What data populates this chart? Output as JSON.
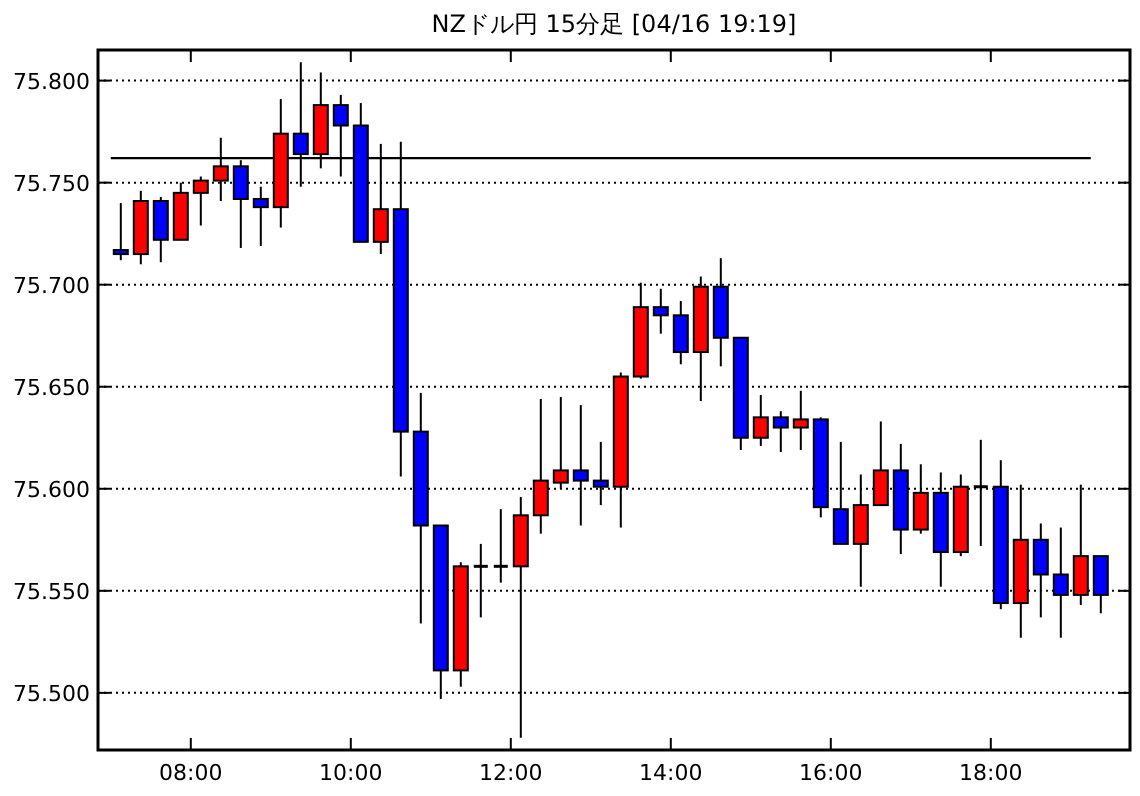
{
  "chart_data": {
    "type": "candlestick",
    "title": "NZドル円 15分足 [04/16 19:19]",
    "x": [
      7.125,
      7.375,
      7.625,
      7.875,
      8.125,
      8.375,
      8.625,
      8.875,
      9.125,
      9.375,
      9.625,
      9.875,
      10.125,
      10.375,
      10.625,
      10.875,
      11.125,
      11.375,
      11.625,
      11.875,
      12.125,
      12.375,
      12.625,
      12.875,
      13.125,
      13.375,
      13.625,
      13.875,
      14.125,
      14.375,
      14.625,
      14.875,
      15.125,
      15.375,
      15.625,
      15.875,
      16.125,
      16.375,
      16.625,
      16.875,
      17.125,
      17.375,
      17.625,
      17.875,
      18.125,
      18.375,
      18.625,
      18.875,
      19.125,
      19.375
    ],
    "ohlc": [
      [
        75.717,
        75.74,
        75.712,
        75.715
      ],
      [
        75.715,
        75.746,
        75.71,
        75.741
      ],
      [
        75.741,
        75.743,
        75.711,
        75.722
      ],
      [
        75.722,
        75.75,
        75.722,
        75.745
      ],
      [
        75.745,
        75.753,
        75.729,
        75.751
      ],
      [
        75.751,
        75.772,
        75.741,
        75.758
      ],
      [
        75.758,
        75.761,
        75.718,
        75.742
      ],
      [
        75.742,
        75.748,
        75.719,
        75.738
      ],
      [
        75.738,
        75.791,
        75.728,
        75.774
      ],
      [
        75.774,
        75.809,
        75.748,
        75.764
      ],
      [
        75.764,
        75.804,
        75.757,
        75.788
      ],
      [
        75.788,
        75.793,
        75.753,
        75.778
      ],
      [
        75.778,
        75.789,
        75.721,
        75.721
      ],
      [
        75.721,
        75.769,
        75.715,
        75.737
      ],
      [
        75.737,
        75.77,
        75.606,
        75.628
      ],
      [
        75.628,
        75.647,
        75.534,
        75.582
      ],
      [
        75.582,
        75.582,
        75.497,
        75.511
      ],
      [
        75.511,
        75.564,
        75.503,
        75.562
      ],
      [
        75.562,
        75.573,
        75.537,
        75.562
      ],
      [
        75.562,
        75.59,
        75.554,
        75.562
      ],
      [
        75.562,
        75.596,
        75.478,
        75.587
      ],
      [
        75.587,
        75.644,
        75.578,
        75.604
      ],
      [
        75.603,
        75.645,
        75.6,
        75.609
      ],
      [
        75.609,
        75.641,
        75.582,
        75.604
      ],
      [
        75.604,
        75.623,
        75.592,
        75.601
      ],
      [
        75.601,
        75.657,
        75.581,
        75.655
      ],
      [
        75.655,
        75.701,
        75.654,
        75.689
      ],
      [
        75.689,
        75.698,
        75.676,
        75.685
      ],
      [
        75.685,
        75.692,
        75.661,
        75.667
      ],
      [
        75.667,
        75.704,
        75.643,
        75.699
      ],
      [
        75.699,
        75.713,
        75.66,
        75.674
      ],
      [
        75.674,
        75.674,
        75.619,
        75.625
      ],
      [
        75.625,
        75.646,
        75.621,
        75.635
      ],
      [
        75.635,
        75.638,
        75.618,
        75.63
      ],
      [
        75.63,
        75.648,
        75.619,
        75.634
      ],
      [
        75.634,
        75.635,
        75.586,
        75.591
      ],
      [
        75.59,
        75.623,
        75.573,
        75.573
      ],
      [
        75.573,
        75.607,
        75.552,
        75.592
      ],
      [
        75.592,
        75.633,
        75.592,
        75.609
      ],
      [
        75.609,
        75.622,
        75.568,
        75.58
      ],
      [
        75.58,
        75.612,
        75.578,
        75.598
      ],
      [
        75.598,
        75.608,
        75.552,
        75.569
      ],
      [
        75.569,
        75.607,
        75.567,
        75.601
      ],
      [
        75.601,
        75.624,
        75.572,
        75.601
      ],
      [
        75.601,
        75.614,
        75.541,
        75.544
      ],
      [
        75.544,
        75.602,
        75.527,
        75.575
      ],
      [
        75.575,
        75.583,
        75.537,
        75.558
      ],
      [
        75.558,
        75.581,
        75.527,
        75.548
      ],
      [
        75.548,
        75.602,
        75.543,
        75.567
      ],
      [
        75.567,
        75.567,
        75.539,
        75.548
      ]
    ],
    "colors": [
      "#0000ff",
      "#ff0000",
      "#0000ff",
      "#ff0000",
      "#ff0000",
      "#ff0000",
      "#0000ff",
      "#0000ff",
      "#ff0000",
      "#0000ff",
      "#ff0000",
      "#0000ff",
      "#0000ff",
      "#ff0000",
      "#0000ff",
      "#0000ff",
      "#0000ff",
      "#ff0000",
      "#000000",
      "#000000",
      "#ff0000",
      "#ff0000",
      "#ff0000",
      "#0000ff",
      "#0000ff",
      "#ff0000",
      "#ff0000",
      "#0000ff",
      "#0000ff",
      "#ff0000",
      "#0000ff",
      "#0000ff",
      "#ff0000",
      "#0000ff",
      "#ff0000",
      "#0000ff",
      "#0000ff",
      "#ff0000",
      "#ff0000",
      "#0000ff",
      "#ff0000",
      "#0000ff",
      "#ff0000",
      "#000000",
      "#0000ff",
      "#ff0000",
      "#0000ff",
      "#0000ff",
      "#ff0000",
      "#0000ff"
    ],
    "xlim": [
      6.84,
      19.74
    ],
    "xticks": [
      {
        "value": 8,
        "label": "08:00"
      },
      {
        "value": 10,
        "label": "10:00"
      },
      {
        "value": 12,
        "label": "12:00"
      },
      {
        "value": 14,
        "label": "14:00"
      },
      {
        "value": 16,
        "label": "16:00"
      },
      {
        "value": 18,
        "label": "18:00"
      }
    ],
    "ylim": [
      75.472,
      75.815
    ],
    "yticks": [
      {
        "value": 75.5,
        "label": "75.500"
      },
      {
        "value": 75.55,
        "label": "75.550"
      },
      {
        "value": 75.6,
        "label": "75.600"
      },
      {
        "value": 75.65,
        "label": "75.650"
      },
      {
        "value": 75.7,
        "label": "75.700"
      },
      {
        "value": 75.75,
        "label": "75.750"
      },
      {
        "value": 75.8,
        "label": "75.800"
      }
    ],
    "grid": "y",
    "ref_lines": [
      {
        "axis": "y",
        "value": 75.762,
        "color": "#000000"
      }
    ]
  }
}
